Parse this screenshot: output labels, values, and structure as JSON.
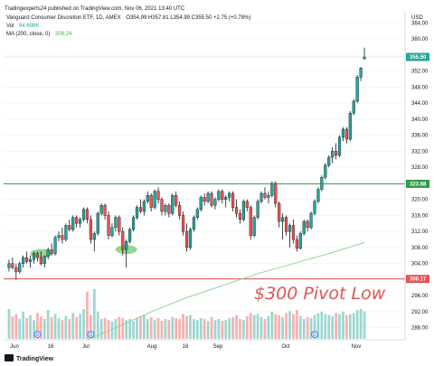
{
  "header": {
    "publisher": "Tradingexperts24 published on TradingView.com, Nov 06, 2021 13:40 UTC",
    "symbol_line": "Vanguard Consumer Discretion ETF, 1D, AMEX",
    "ohlc": "O354.99 H357.81 L354.99 C355.50 +2.75 (+0.78%)",
    "vol_label": "Vol",
    "vol_value": "94.698K",
    "ma_label": "MA (200, close, 0)",
    "ma_value": "309.24"
  },
  "currency": "USD",
  "footer": {
    "brand": "TradingView"
  },
  "colors": {
    "up": "#26a69a",
    "down": "#ef5350",
    "wick": "#131722",
    "ma": "#8fd694",
    "hline_green": "#2e9b47",
    "hline_red": "#e05555",
    "ellipse_fill": "#7fd07f"
  },
  "chart_data": {
    "type": "candlestick",
    "ylim": [
      285,
      367
    ],
    "yticks": [
      288,
      292,
      296,
      300,
      304,
      308,
      312,
      316,
      320,
      324,
      328,
      332,
      336,
      340,
      344,
      348,
      352,
      356,
      360,
      364
    ],
    "x_tick_labels": [
      "Jun",
      "16",
      "Jul",
      "Aug",
      "16",
      "Sep",
      "Oct",
      "Nov"
    ],
    "price_labels": {
      "last": {
        "value": 355.5,
        "text": "355.50"
      },
      "resistance": {
        "value": 323.88,
        "text": "323.88"
      },
      "support": {
        "value": 300.17,
        "text": "300.17"
      }
    },
    "annotation": "$300 Pivot Low",
    "markers": [
      {
        "label": "D",
        "x_index": 8
      },
      {
        "label": "D",
        "x_index": 23
      },
      {
        "label": "D",
        "x_index": 86
      }
    ],
    "highlights": [
      {
        "x_index": 9,
        "price": 306.5
      },
      {
        "x_index": 33,
        "price": 307.5
      }
    ],
    "candles": [
      [
        303.0,
        305.0,
        302.0,
        304.0
      ],
      [
        304.0,
        305.5,
        302.5,
        303.0
      ],
      [
        303.0,
        304.0,
        300.0,
        302.0
      ],
      [
        302.0,
        304.5,
        301.5,
        304.0
      ],
      [
        304.0,
        306.0,
        303.0,
        305.5
      ],
      [
        305.5,
        307.0,
        304.0,
        304.5
      ],
      [
        304.5,
        306.0,
        303.0,
        305.0
      ],
      [
        305.0,
        307.0,
        304.0,
        306.5
      ],
      [
        306.5,
        307.0,
        304.5,
        305.5
      ],
      [
        305.5,
        307.0,
        303.5,
        304.0
      ],
      [
        304.0,
        306.0,
        303.0,
        305.8
      ],
      [
        305.8,
        308.0,
        305.0,
        307.5
      ],
      [
        307.5,
        309.0,
        306.0,
        306.5
      ],
      [
        306.5,
        311.0,
        306.0,
        310.5
      ],
      [
        310.5,
        312.0,
        309.5,
        311.0
      ],
      [
        311.0,
        313.0,
        309.0,
        310.0
      ],
      [
        310.0,
        314.0,
        309.5,
        313.5
      ],
      [
        313.5,
        315.0,
        312.0,
        312.5
      ],
      [
        312.5,
        316.0,
        312.0,
        315.5
      ],
      [
        315.5,
        316.0,
        313.0,
        314.0
      ],
      [
        314.0,
        315.5,
        313.0,
        315.0
      ],
      [
        315.0,
        318.0,
        314.5,
        317.5
      ],
      [
        317.5,
        318.0,
        314.0,
        315.0
      ],
      [
        315.0,
        316.0,
        309.0,
        310.0
      ],
      [
        310.0,
        312.0,
        307.0,
        311.5
      ],
      [
        311.5,
        317.0,
        311.0,
        316.5
      ],
      [
        316.5,
        319.0,
        316.0,
        318.5
      ],
      [
        318.5,
        319.0,
        315.0,
        316.0
      ],
      [
        316.0,
        317.0,
        310.0,
        311.0
      ],
      [
        311.0,
        314.0,
        310.5,
        313.0
      ],
      [
        313.0,
        316.0,
        312.0,
        315.5
      ],
      [
        315.5,
        316.0,
        311.0,
        312.0
      ],
      [
        312.0,
        313.0,
        306.0,
        307.5
      ],
      [
        307.5,
        310.0,
        303.0,
        309.5
      ],
      [
        309.5,
        313.0,
        309.0,
        312.5
      ],
      [
        312.5,
        316.0,
        312.0,
        315.5
      ],
      [
        315.5,
        318.5,
        315.0,
        318.0
      ],
      [
        318.0,
        320.0,
        316.5,
        317.0
      ],
      [
        317.0,
        320.0,
        316.0,
        319.5
      ],
      [
        319.5,
        322.0,
        319.0,
        321.0
      ],
      [
        321.0,
        321.5,
        317.0,
        318.0
      ],
      [
        318.0,
        322.5,
        317.5,
        322.0
      ],
      [
        322.0,
        323.0,
        319.0,
        320.0
      ],
      [
        320.0,
        320.5,
        316.0,
        317.0
      ],
      [
        317.0,
        319.0,
        316.0,
        318.5
      ],
      [
        318.5,
        319.0,
        315.5,
        316.5
      ],
      [
        316.5,
        321.5,
        316.0,
        321.0
      ],
      [
        321.0,
        322.0,
        318.0,
        318.5
      ],
      [
        318.5,
        319.5,
        315.0,
        316.0
      ],
      [
        316.0,
        317.0,
        311.0,
        312.0
      ],
      [
        312.0,
        314.0,
        307.0,
        308.0
      ],
      [
        308.0,
        313.0,
        307.5,
        312.5
      ],
      [
        312.5,
        316.0,
        312.0,
        315.5
      ],
      [
        315.5,
        318.0,
        315.0,
        317.5
      ],
      [
        317.5,
        321.0,
        317.0,
        320.5
      ],
      [
        320.5,
        321.5,
        318.5,
        319.5
      ],
      [
        319.5,
        322.0,
        319.0,
        321.5
      ],
      [
        321.5,
        322.0,
        318.0,
        318.5
      ],
      [
        318.5,
        320.5,
        317.5,
        320.0
      ],
      [
        320.0,
        322.5,
        319.5,
        322.0
      ],
      [
        322.0,
        322.5,
        319.0,
        320.0
      ],
      [
        320.0,
        321.0,
        318.0,
        320.5
      ],
      [
        320.5,
        322.0,
        319.5,
        321.5
      ],
      [
        321.5,
        322.0,
        317.0,
        318.0
      ],
      [
        318.0,
        320.0,
        315.5,
        316.5
      ],
      [
        316.5,
        317.5,
        314.0,
        315.0
      ],
      [
        315.0,
        320.0,
        314.5,
        319.5
      ],
      [
        319.5,
        320.0,
        317.0,
        318.0
      ],
      [
        318.0,
        318.5,
        310.0,
        311.0
      ],
      [
        311.0,
        316.0,
        310.5,
        315.5
      ],
      [
        315.5,
        320.0,
        315.0,
        319.5
      ],
      [
        319.5,
        322.0,
        319.0,
        321.5
      ],
      [
        321.5,
        323.0,
        320.0,
        320.5
      ],
      [
        320.5,
        322.0,
        319.0,
        321.0
      ],
      [
        321.0,
        324.5,
        320.5,
        324.0
      ],
      [
        324.0,
        324.5,
        318.0,
        319.0
      ],
      [
        319.0,
        319.5,
        313.0,
        314.5
      ],
      [
        314.5,
        316.5,
        310.0,
        315.5
      ],
      [
        315.5,
        316.0,
        311.0,
        312.0
      ],
      [
        312.0,
        314.0,
        308.0,
        313.5
      ],
      [
        313.5,
        315.0,
        309.0,
        310.0
      ],
      [
        310.0,
        311.0,
        307.0,
        307.8
      ],
      [
        307.8,
        312.0,
        307.5,
        311.5
      ],
      [
        311.5,
        315.0,
        311.0,
        314.5
      ],
      [
        314.5,
        315.0,
        312.0,
        313.0
      ],
      [
        313.0,
        317.0,
        312.5,
        316.5
      ],
      [
        316.5,
        320.0,
        316.0,
        319.5
      ],
      [
        319.5,
        323.0,
        319.0,
        322.5
      ],
      [
        322.5,
        326.0,
        322.0,
        325.5
      ],
      [
        325.5,
        329.0,
        325.0,
        328.5
      ],
      [
        328.5,
        331.0,
        328.0,
        330.5
      ],
      [
        330.5,
        333.0,
        329.0,
        332.0
      ],
      [
        332.0,
        334.0,
        330.0,
        331.0
      ],
      [
        331.0,
        336.0,
        330.5,
        335.5
      ],
      [
        335.5,
        338.0,
        334.5,
        337.5
      ],
      [
        337.5,
        338.0,
        334.0,
        335.0
      ],
      [
        335.0,
        342.0,
        334.5,
        341.5
      ],
      [
        341.5,
        345.0,
        341.0,
        344.5
      ],
      [
        344.5,
        351.0,
        344.0,
        350.5
      ],
      [
        350.5,
        353.0,
        349.5,
        352.75
      ],
      [
        354.99,
        357.81,
        354.99,
        355.5
      ]
    ],
    "volume": [
      60,
      45,
      50,
      40,
      55,
      42,
      48,
      38,
      52,
      45,
      40,
      58,
      44,
      50,
      42,
      38,
      46,
      40,
      52,
      44,
      50,
      60,
      95,
      48,
      100,
      55,
      40,
      42,
      38,
      35,
      40,
      44,
      42,
      38,
      40,
      36,
      42,
      45,
      48,
      40,
      44,
      38,
      42,
      36,
      40,
      38,
      44,
      42,
      40,
      50,
      46,
      48,
      40,
      38,
      42,
      40,
      36,
      44,
      38,
      40,
      36,
      38,
      42,
      44,
      48,
      40,
      38,
      46,
      52,
      48,
      50,
      44,
      40,
      46,
      55,
      50,
      48,
      44,
      52,
      56,
      50,
      58,
      46,
      40,
      44,
      42,
      48,
      52,
      55,
      50,
      48,
      46,
      52,
      50,
      55,
      48,
      50,
      52,
      58,
      60,
      55
    ],
    "ma200": [
      [
        22,
        285.0
      ],
      [
        30,
        288.0
      ],
      [
        40,
        292.0
      ],
      [
        50,
        295.5
      ],
      [
        60,
        298.5
      ],
      [
        70,
        301.5
      ],
      [
        80,
        304.0
      ],
      [
        90,
        306.5
      ],
      [
        100,
        309.24
      ]
    ]
  }
}
